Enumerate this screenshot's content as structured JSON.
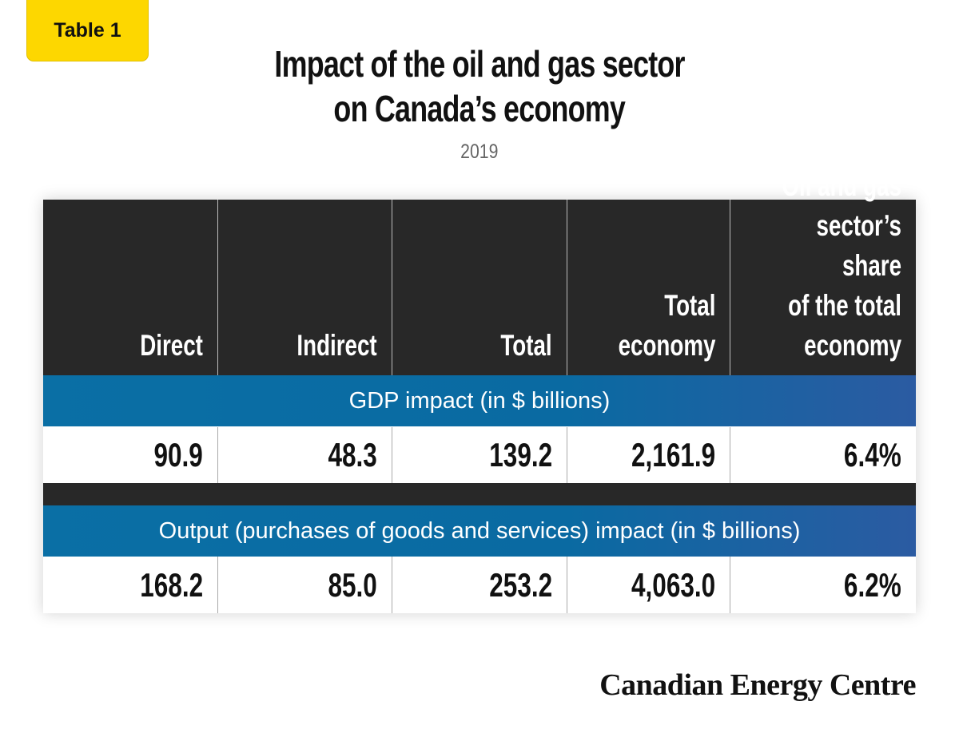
{
  "badge": "Table 1",
  "title_line1": "Impact of the oil and gas sector",
  "title_line2": "on Canada’s economy",
  "subtitle": "2019",
  "brand": "Canadian Energy Centre",
  "colors": {
    "badge": "#fdd700",
    "header": "#282828",
    "band": "#0a6fa5"
  },
  "chart_data": {
    "type": "table",
    "columns": [
      "Direct",
      "Indirect",
      "Total",
      "Total\neconomy",
      "Oil and gas\nsector’s share\nof the total\neconomy"
    ],
    "sections": [
      {
        "label": "GDP impact (in $ billions)",
        "values": [
          "90.9",
          "48.3",
          "139.2",
          "2,161.9",
          "6.4%"
        ]
      },
      {
        "label": "Output (purchases of goods and services) impact (in $ billions)",
        "values": [
          "168.2",
          "85.0",
          "253.2",
          "4,063.0",
          "6.2%"
        ]
      }
    ]
  }
}
